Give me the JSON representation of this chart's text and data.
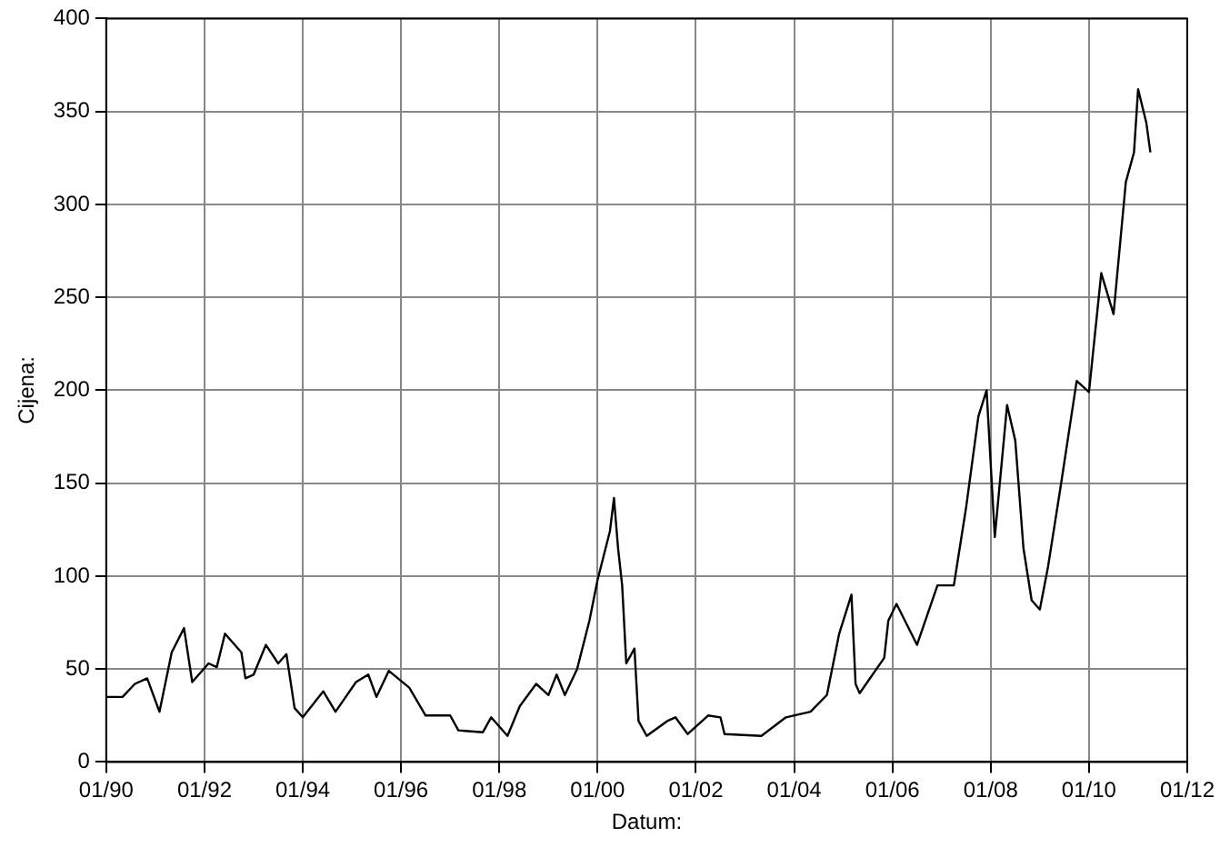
{
  "chart_data": {
    "type": "line",
    "xlabel": "Datum:",
    "ylabel": "Cijena:",
    "x": [
      "1990-01",
      "1990-05",
      "1990-08",
      "1990-11",
      "1991-02",
      "1991-05",
      "1991-08",
      "1991-10",
      "1992-02",
      "1992-04",
      "1992-06",
      "1992-10",
      "1992-11",
      "1993-01",
      "1993-04",
      "1993-07",
      "1993-09",
      "1993-11",
      "1994-01",
      "1994-06",
      "1994-09",
      "1995-02",
      "1995-05",
      "1995-07",
      "1995-10",
      "1996-03",
      "1996-07",
      "1997-01",
      "1997-03",
      "1997-09",
      "1997-11",
      "1998-03",
      "1998-06",
      "1998-10",
      "1999-01",
      "1999-03",
      "1999-05",
      "1999-08",
      "1999-11",
      "2000-01",
      "2000-04",
      "2000-05",
      "2000-06",
      "2000-07",
      "2000-08",
      "2000-10",
      "2000-11",
      "2001-01",
      "2001-06",
      "2001-08",
      "2001-11",
      "2002-04",
      "2002-07",
      "2002-08",
      "2003-05",
      "2003-11",
      "2004-05",
      "2004-09",
      "2004-12",
      "2005-03",
      "2005-04",
      "2005-05",
      "2005-11",
      "2005-12",
      "2006-02",
      "2006-07",
      "2006-12",
      "2007-04",
      "2007-07",
      "2007-10",
      "2007-12",
      "2008-02",
      "2008-05",
      "2008-07",
      "2008-09",
      "2008-11",
      "2009-01",
      "2009-03",
      "2009-06",
      "2009-10",
      "2010-01",
      "2010-04",
      "2010-07",
      "2010-10",
      "2010-12",
      "2011-01",
      "2011-03",
      "2011-04"
    ],
    "series": [
      {
        "color": "#000000",
        "values": [
          35,
          35,
          42,
          45,
          27,
          59,
          72,
          43,
          53,
          51,
          69,
          59,
          45,
          47,
          63,
          53,
          58,
          29,
          24,
          38,
          27,
          43,
          47,
          35,
          49,
          40,
          25,
          25,
          17,
          16,
          24,
          14,
          30,
          42,
          36,
          47,
          36,
          50,
          76,
          98,
          124,
          142,
          115,
          95,
          53,
          61,
          22,
          14,
          22,
          24,
          15,
          25,
          24,
          15,
          14,
          24,
          27,
          36,
          69,
          90,
          42,
          37,
          56,
          76,
          85,
          63,
          95,
          95,
          137,
          186,
          200,
          121,
          192,
          173,
          115,
          87,
          82,
          105,
          147,
          205,
          199,
          263,
          241,
          312,
          328,
          362,
          344,
          328
        ]
      }
    ],
    "xlim": [
      "1990-01",
      "2012-01"
    ],
    "xticks": [
      {
        "value": "1990-01",
        "label": "01/90"
      },
      {
        "value": "1992-01",
        "label": "01/92"
      },
      {
        "value": "1994-01",
        "label": "01/94"
      },
      {
        "value": "1996-01",
        "label": "01/96"
      },
      {
        "value": "1998-01",
        "label": "01/98"
      },
      {
        "value": "2000-01",
        "label": "01/00"
      },
      {
        "value": "2002-01",
        "label": "01/02"
      },
      {
        "value": "2004-01",
        "label": "01/04"
      },
      {
        "value": "2006-01",
        "label": "01/06"
      },
      {
        "value": "2008-01",
        "label": "01/08"
      },
      {
        "value": "2010-01",
        "label": "01/10"
      },
      {
        "value": "2012-01",
        "label": "01/12"
      }
    ],
    "ylim": [
      0,
      400
    ],
    "yticks": [
      0,
      50,
      100,
      150,
      200,
      250,
      300,
      350,
      400
    ],
    "grid": true,
    "legend": false,
    "line_style": "solid"
  }
}
